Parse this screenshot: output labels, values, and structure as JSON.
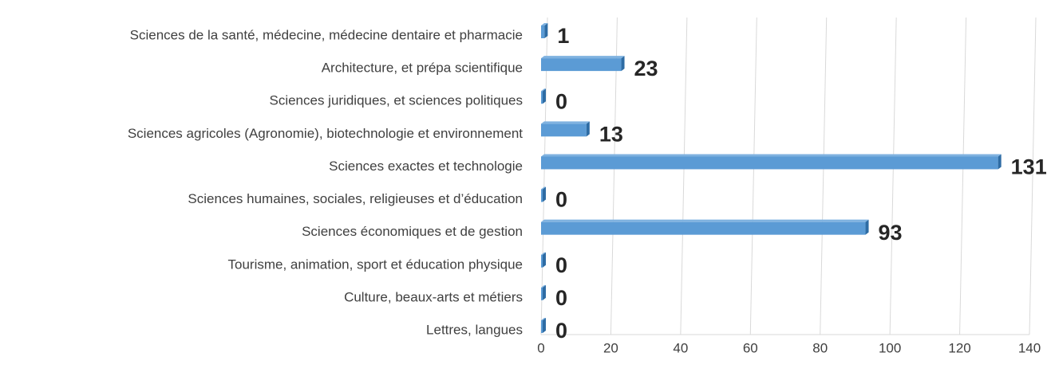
{
  "chart_data": {
    "type": "bar",
    "orientation": "horizontal",
    "categories": [
      "Sciences de la santé, médecine, médecine dentaire et pharmacie",
      "Architecture, et prépa scientifique",
      "Sciences juridiques, et sciences politiques",
      "Sciences agricoles (Agronomie), biotechnologie et environnement",
      "Sciences exactes et technologie",
      "Sciences humaines, sociales, religieuses et d’éducation",
      "Sciences économiques et de gestion",
      "Tourisme, animation, sport et éducation physique",
      "Culture, beaux-arts et métiers",
      "Lettres, langues"
    ],
    "values": [
      1,
      23,
      0,
      13,
      131,
      0,
      93,
      0,
      0,
      0
    ],
    "color": "#5b9bd5",
    "xlim": [
      0,
      140
    ],
    "xticks": [
      0,
      20,
      40,
      60,
      80,
      100,
      120,
      140
    ],
    "grid": true
  }
}
